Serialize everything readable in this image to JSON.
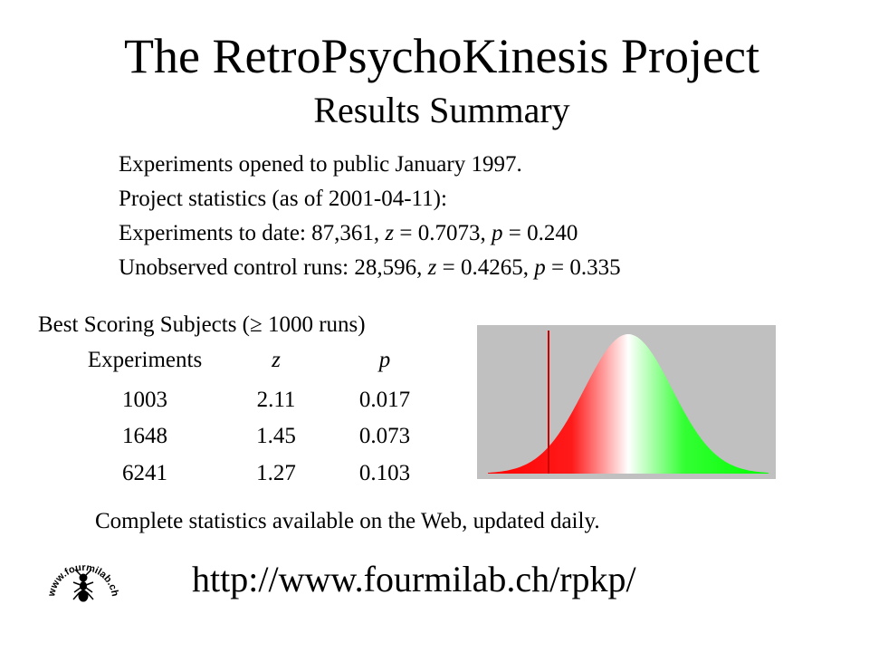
{
  "title": "The RetroPsychoKinesis Project",
  "subtitle": "Results Summary",
  "stats": {
    "line1": "Experiments opened to public January 1997.",
    "line2": "Project statistics (as of 2001-04-11):",
    "line3": {
      "prefix": "Experiments to date: 87,361, ",
      "z_label": "z",
      "z_value": " = 0.7073, ",
      "p_label": "p",
      "p_value": " = 0.240"
    },
    "line4": {
      "prefix": "Unobserved control runs: 28,596, ",
      "z_label": "z",
      "z_value": " = 0.4265, ",
      "p_label": "p",
      "p_value": " = 0.335"
    }
  },
  "best": {
    "title": "Best Scoring Subjects (≥ 1000 runs)",
    "headers": [
      "Experiments",
      "z",
      "p"
    ],
    "rows": [
      [
        "1003",
        "2.11",
        "0.017"
      ],
      [
        "1648",
        "1.45",
        "0.073"
      ],
      [
        "6241",
        "1.27",
        "0.103"
      ]
    ]
  },
  "colors": {
    "chart_background": "#c0c0c0",
    "negative_side": "#ff0000",
    "positive_side": "#00ff00",
    "marker_line": "#cc0000"
  },
  "footer_note": "Complete statistics available on the Web, updated daily.",
  "url": "http://www.fourmilab.ch/rpkp/",
  "logo_text": "www.fourmilab.ch"
}
